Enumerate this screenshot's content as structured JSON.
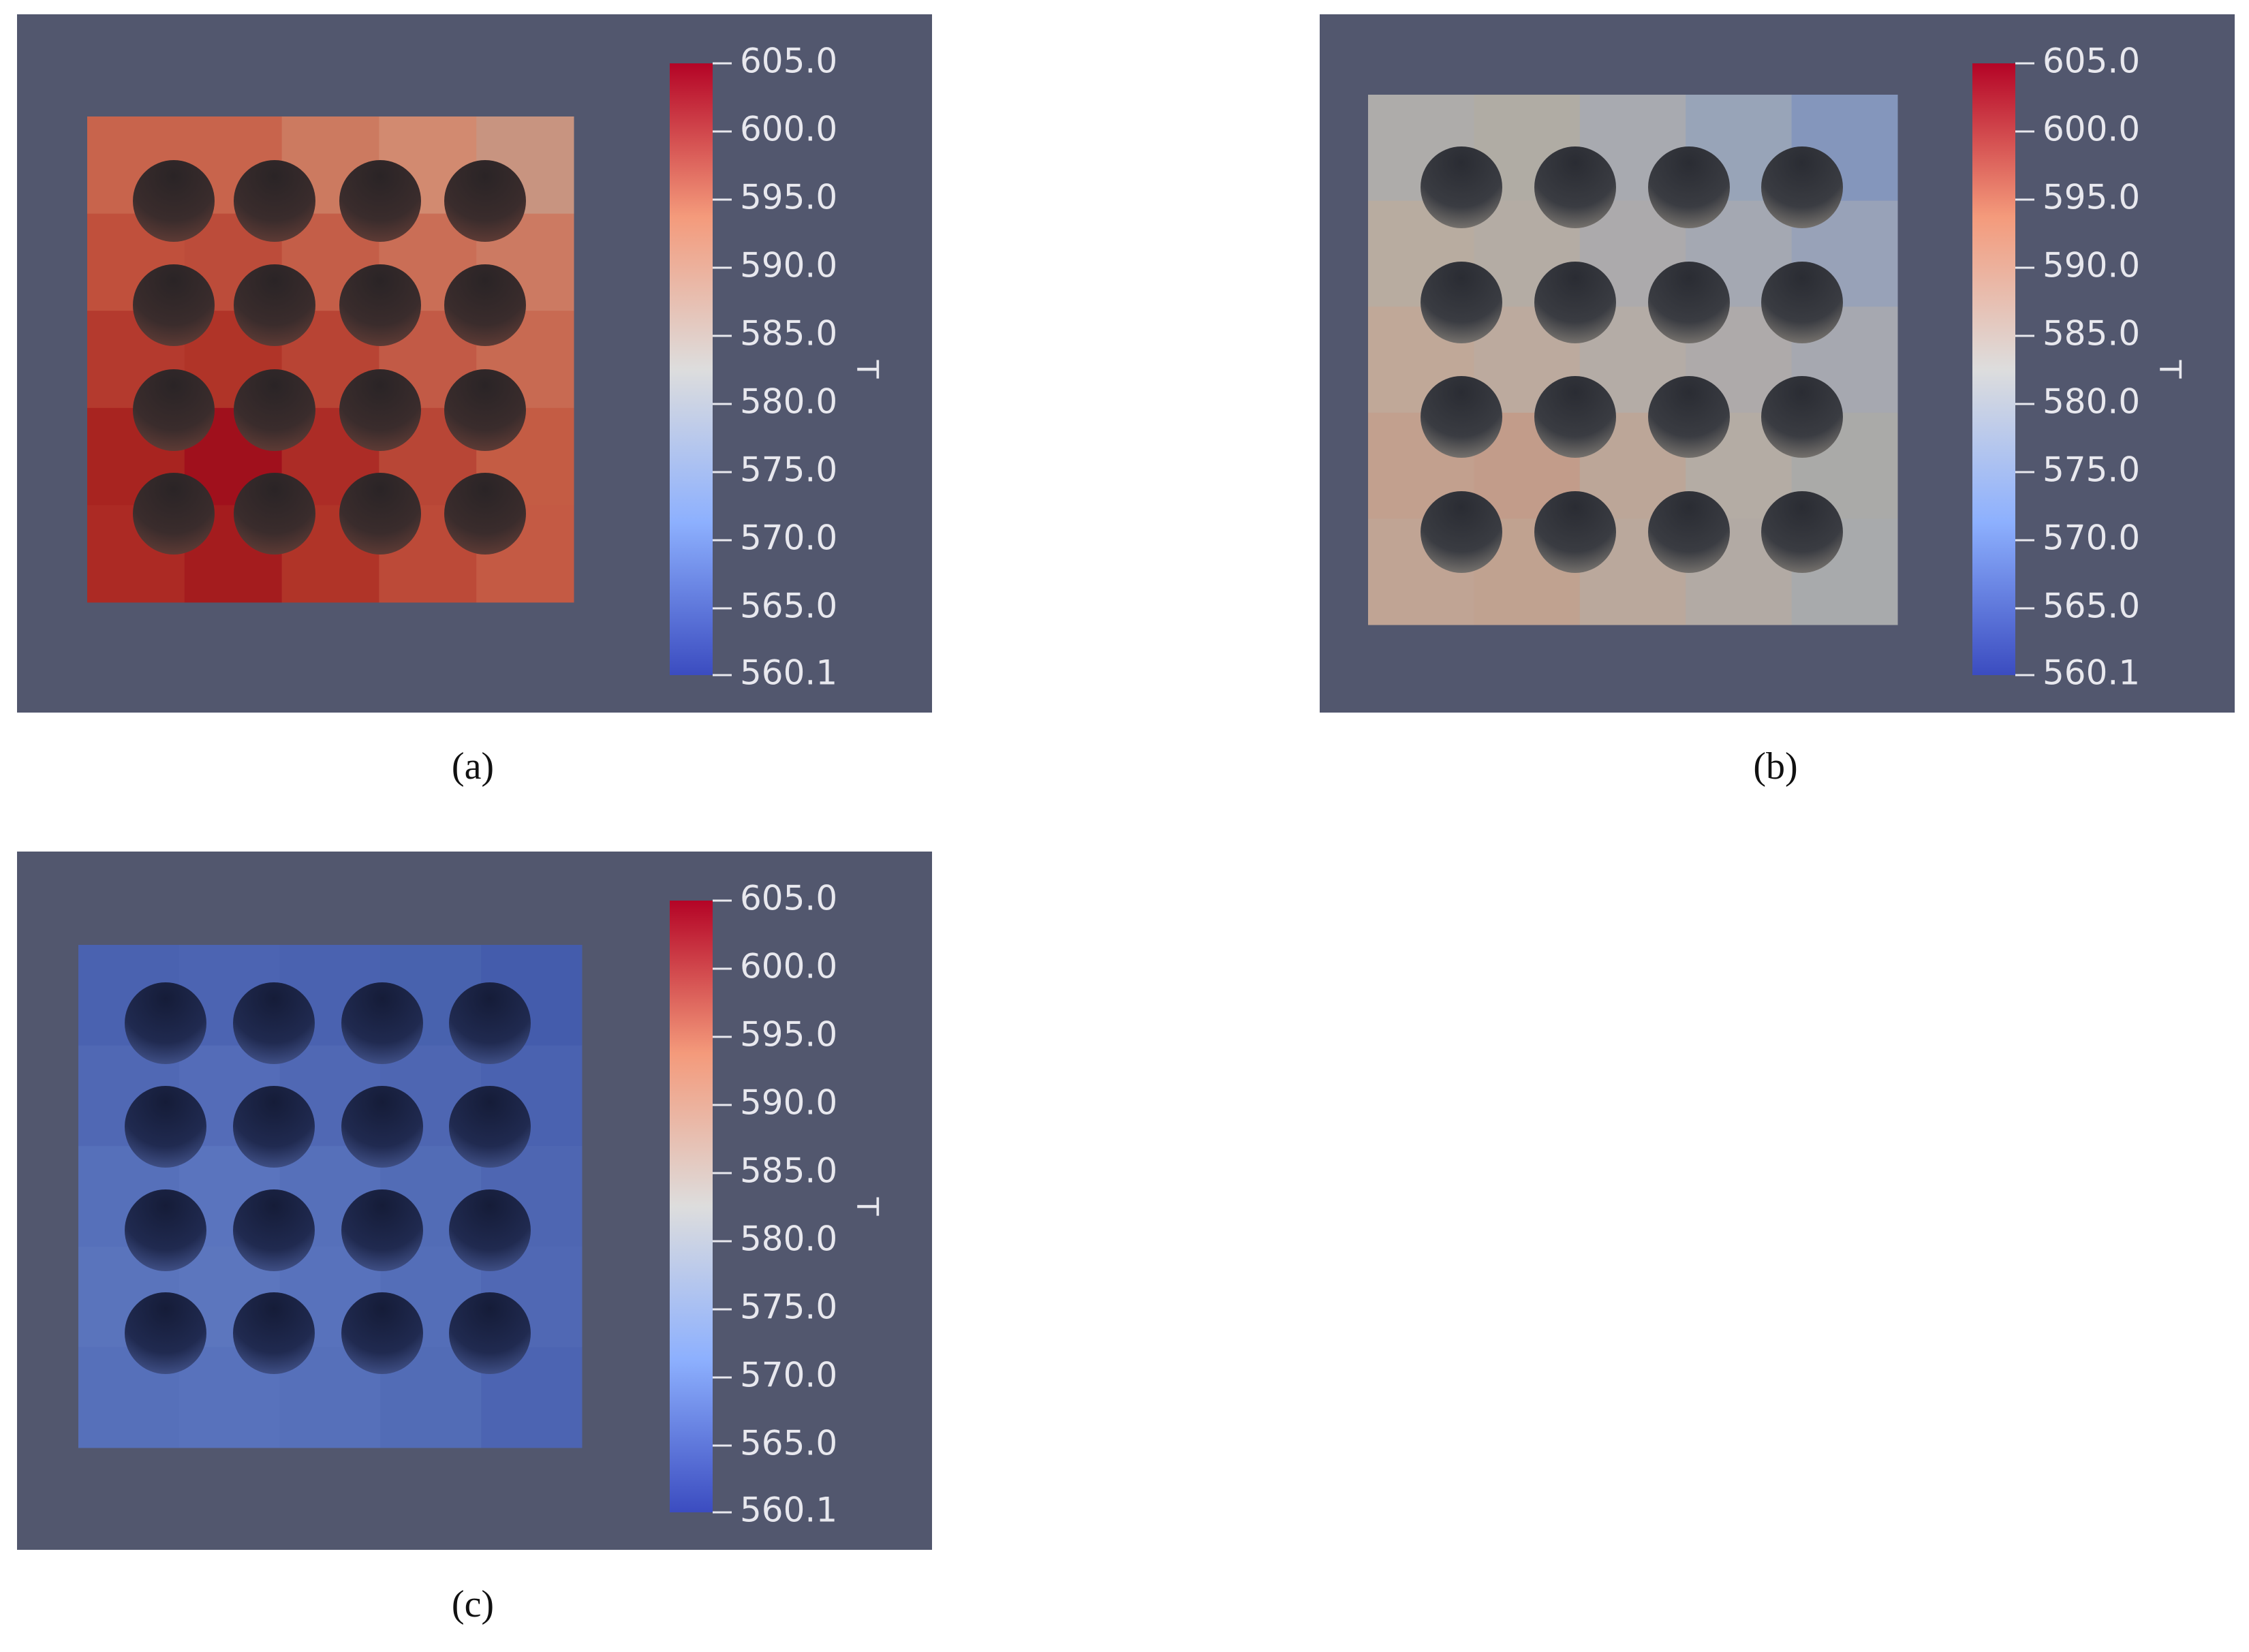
{
  "panels": [
    {
      "label": "(a)",
      "colorbar": {
        "title": "T",
        "ticks": [
          "605.0",
          "600.0",
          "595.0",
          "590.0",
          "585.0",
          "580.0",
          "575.0",
          "570.0",
          "565.0",
          "560.1"
        ]
      }
    },
    {
      "label": "(b)",
      "colorbar": {
        "title": "T",
        "ticks": [
          "605.0",
          "600.0",
          "595.0",
          "590.0",
          "585.0",
          "580.0",
          "575.0",
          "570.0",
          "565.0",
          "560.1"
        ]
      }
    },
    {
      "label": "(c)",
      "colorbar": {
        "title": "T",
        "ticks": [
          "605.0",
          "600.0",
          "595.0",
          "590.0",
          "585.0",
          "580.0",
          "575.0",
          "570.0",
          "565.0",
          "560.1"
        ]
      }
    }
  ]
}
